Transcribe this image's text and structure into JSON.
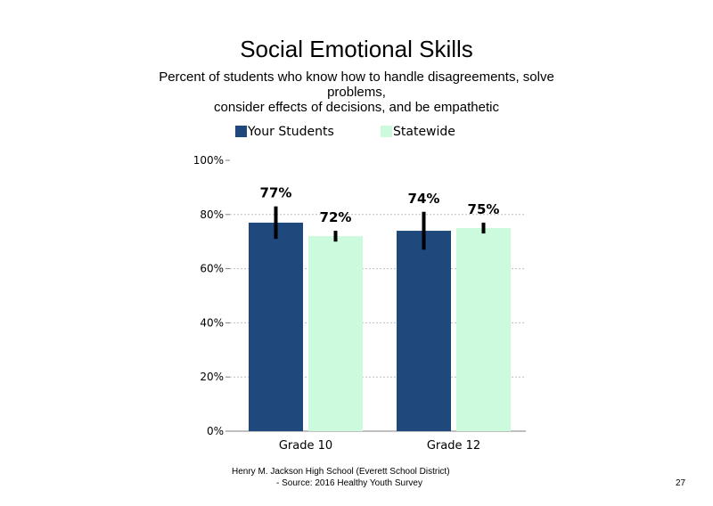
{
  "chart_data": {
    "type": "bar",
    "title": "Social Emotional Skills",
    "subtitle_lines": [
      "Percent of students who know how to handle disagreements, solve",
      "problems,",
      "consider effects of decisions, and be empathetic"
    ],
    "categories": [
      "Grade 10",
      "Grade 12"
    ],
    "series": [
      {
        "name": "Your Students",
        "values": [
          77,
          74
        ],
        "labels": [
          "77%",
          "74%"
        ],
        "error_low": [
          71,
          67
        ],
        "error_high": [
          83,
          81
        ],
        "color": "#1f497d"
      },
      {
        "name": "Statewide",
        "values": [
          72,
          75
        ],
        "labels": [
          "72%",
          "75%"
        ],
        "error_low": [
          70,
          73
        ],
        "error_high": [
          74,
          77
        ],
        "color": "#ccfadc"
      }
    ],
    "ylim": [
      0,
      100
    ],
    "yticks": [
      0,
      20,
      40,
      60,
      80,
      100
    ],
    "ytick_labels": [
      "0%",
      "20%",
      "40%",
      "60%",
      "80%",
      "100%"
    ],
    "grid": true,
    "legend_position": "top"
  },
  "footer": {
    "line1": "Henry M. Jackson High School (Everett School District)",
    "line2": "- Source: 2016 Healthy Youth Survey"
  },
  "page_number": "27"
}
